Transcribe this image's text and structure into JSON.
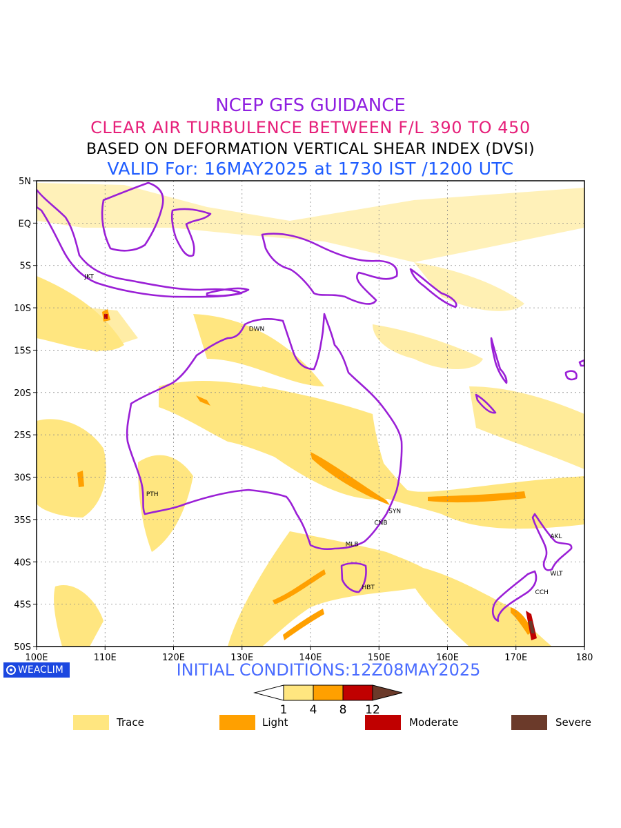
{
  "titles": {
    "line1": "NCEP GFS GUIDANCE",
    "line2": "CLEAR AIR TURBULENCE BETWEEN F/L 390 TO 450",
    "line3": "BASED ON DEFORMATION VERTICAL SHEAR INDEX (DVSI)",
    "line4": "VALID For: 16MAY2025 at 1730 IST /1200 UTC"
  },
  "map": {
    "lon_range": [
      100,
      180
    ],
    "lat_range": [
      -50,
      5
    ],
    "x_ticks": [
      "100E",
      "110E",
      "120E",
      "130E",
      "140E",
      "150E",
      "160E",
      "170E",
      "180"
    ],
    "y_ticks": [
      "5N",
      "EQ",
      "5S",
      "10S",
      "15S",
      "20S",
      "25S",
      "30S",
      "35S",
      "40S",
      "45S",
      "50S"
    ],
    "grid": true,
    "coastline_color": "#9a1fd6",
    "stations": [
      {
        "code": "JKT",
        "lon": 106.8,
        "lat": -6.2
      },
      {
        "code": "DWN",
        "lon": 130.8,
        "lat": -12.4
      },
      {
        "code": "PTH",
        "lon": 115.8,
        "lat": -31.9
      },
      {
        "code": "SYN",
        "lon": 151.2,
        "lat": -33.9
      },
      {
        "code": "CNB",
        "lon": 149.1,
        "lat": -35.3
      },
      {
        "code": "MLB",
        "lon": 144.9,
        "lat": -37.8
      },
      {
        "code": "HBT",
        "lon": 147.3,
        "lat": -42.9
      },
      {
        "code": "AKL",
        "lon": 174.8,
        "lat": -36.9
      },
      {
        "code": "WLT",
        "lon": 174.8,
        "lat": -41.3
      },
      {
        "code": "CCH",
        "lon": 172.6,
        "lat": -43.5
      }
    ]
  },
  "colorbar": {
    "ticks": [
      "1",
      "4",
      "8",
      "12"
    ],
    "colors": [
      "#ffe680",
      "#ffa000",
      "#c00000",
      "#6b3a2a"
    ]
  },
  "legend": [
    {
      "label": "Trace",
      "color": "#ffe680"
    },
    {
      "label": "Light",
      "color": "#ffa000"
    },
    {
      "label": "Moderate",
      "color": "#c00000"
    },
    {
      "label": "Severe",
      "color": "#6b3a2a"
    }
  ],
  "footer": {
    "initial_conditions": "INITIAL CONDITIONS:12Z08MAY2025",
    "brand": "WEACLIM"
  }
}
